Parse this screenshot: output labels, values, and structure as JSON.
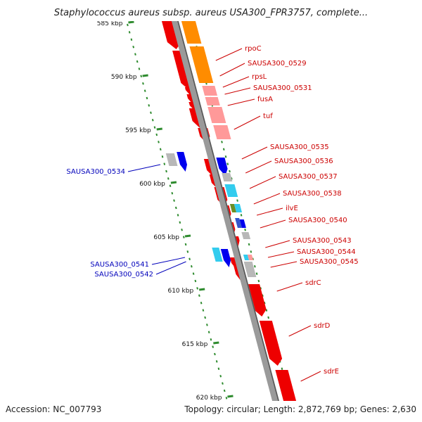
{
  "title": "Staphylococcus aureus subsp. aureus USA300_FPR3757, complete...",
  "footer": {
    "accession": "Accession: NC_007793",
    "topology": "Topology: circular; Length: 2,872,769 bp; Genes: 2,630"
  },
  "colors": {
    "backbone": "#9a9a9a",
    "forward_strand": "#ff8c00",
    "feature_red": "#ee0000",
    "feature_pink": "#ff9999",
    "feature_blue": "#0000ee",
    "feature_cyan": "#33ccee",
    "feature_gray": "#b8b8b8",
    "feature_olive": "#6b8e23",
    "kbp_ticks": "#2e8b2e",
    "label_right": "#cc0000",
    "label_left": "#0000bb"
  },
  "kbp_marks": [
    {
      "label": "585 kbp",
      "pos": 585
    },
    {
      "label": "590 kbp",
      "pos": 590
    },
    {
      "label": "595 kbp",
      "pos": 595
    },
    {
      "label": "600 kbp",
      "pos": 600
    },
    {
      "label": "605 kbp",
      "pos": 605
    },
    {
      "label": "610 kbp",
      "pos": 610
    },
    {
      "label": "615 kbp",
      "pos": 615
    },
    {
      "label": "620 kbp",
      "pos": 620
    }
  ],
  "genes_right": [
    "rpoC",
    "SAUSA300_0529",
    "rpsL",
    "SAUSA300_0531",
    "fusA",
    "tuf",
    "SAUSA300_0535",
    "SAUSA300_0536",
    "SAUSA300_0537",
    "SAUSA300_0538",
    "ilvE",
    "SAUSA300_0540",
    "SAUSA300_0543",
    "SAUSA300_0544",
    "SAUSA300_0545",
    "sdrC",
    "sdrD",
    "sdrE"
  ],
  "genes_left": [
    "SAUSA300_0534",
    "SAUSA300_0541",
    "SAUSA300_0542"
  ]
}
